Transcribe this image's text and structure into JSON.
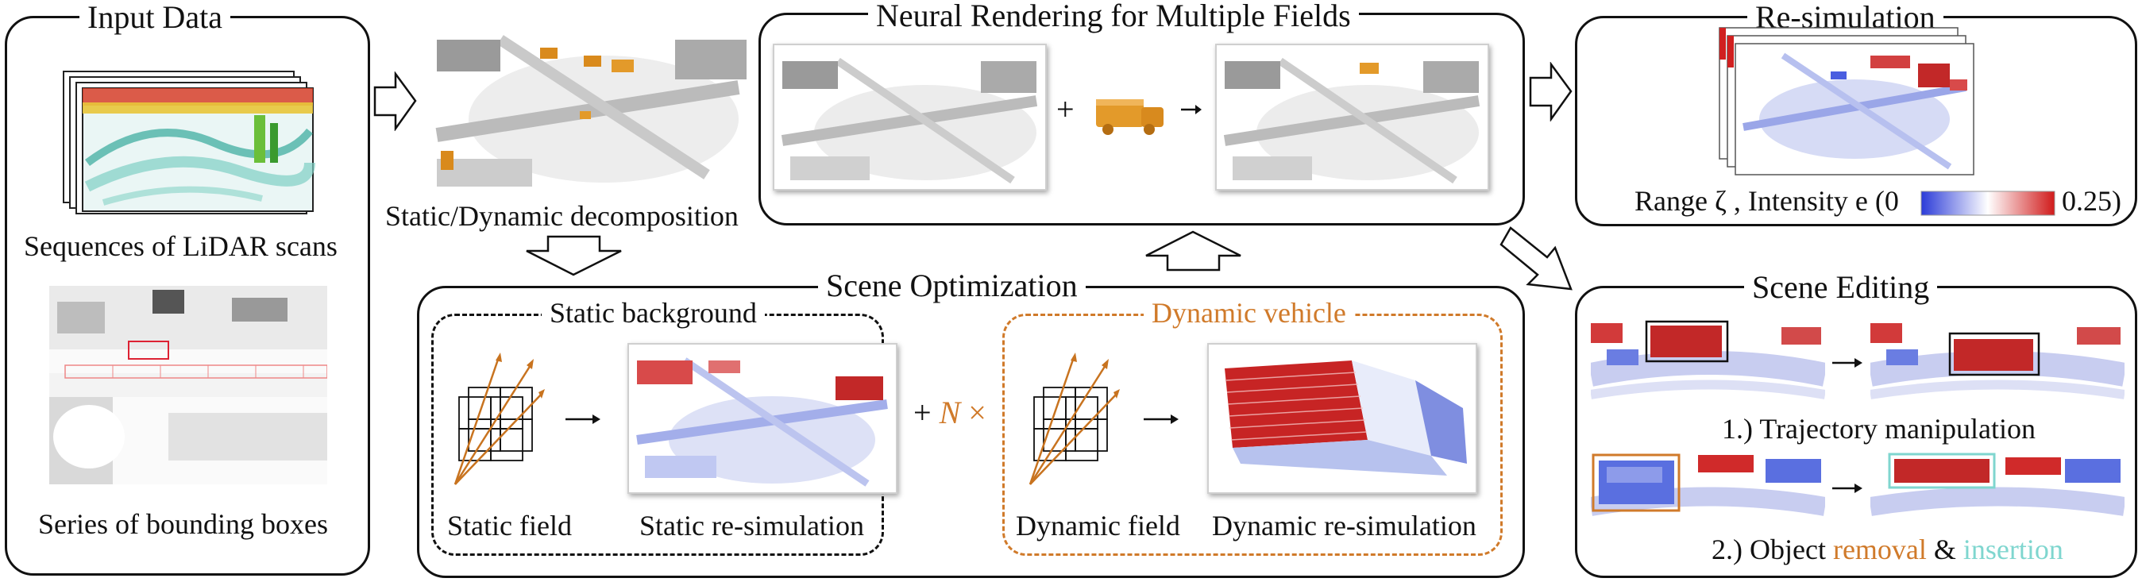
{
  "input": {
    "title": "Input Data",
    "scans_label": "Sequences of LiDAR scans",
    "boxes_label": "Series of bounding boxes"
  },
  "decomposition": {
    "label": "Static/Dynamic decomposition"
  },
  "rendering": {
    "title": "Neural Rendering for Multiple Fields",
    "plus": "+"
  },
  "resim": {
    "title": "Re-simulation",
    "legend_prefix": "Range ζ , Intensity e (0",
    "legend_suffix": "0.25)",
    "colors": {
      "low": "#2b3bd8",
      "mid": "#ffffff",
      "high": "#d01a1a"
    }
  },
  "optimization": {
    "title": "Scene Optimization",
    "static_title": "Static background",
    "dynamic_title": "Dynamic vehicle",
    "static_field": "Static field",
    "static_resim": "Static re-simulation",
    "dynamic_field": "Dynamic field",
    "dynamic_resim": "Dynamic re-simulation",
    "plus": "+",
    "n_symbol": "N",
    "times": "×"
  },
  "editing": {
    "title": "Scene Editing",
    "trajectory": "1.) Trajectory manipulation",
    "object_prefix": "2.) Object",
    "removal": "removal",
    "amp": "&",
    "insertion": "insertion"
  },
  "accent_colors": {
    "orange": "#d07a2a",
    "cyan": "#7fd6cf"
  }
}
